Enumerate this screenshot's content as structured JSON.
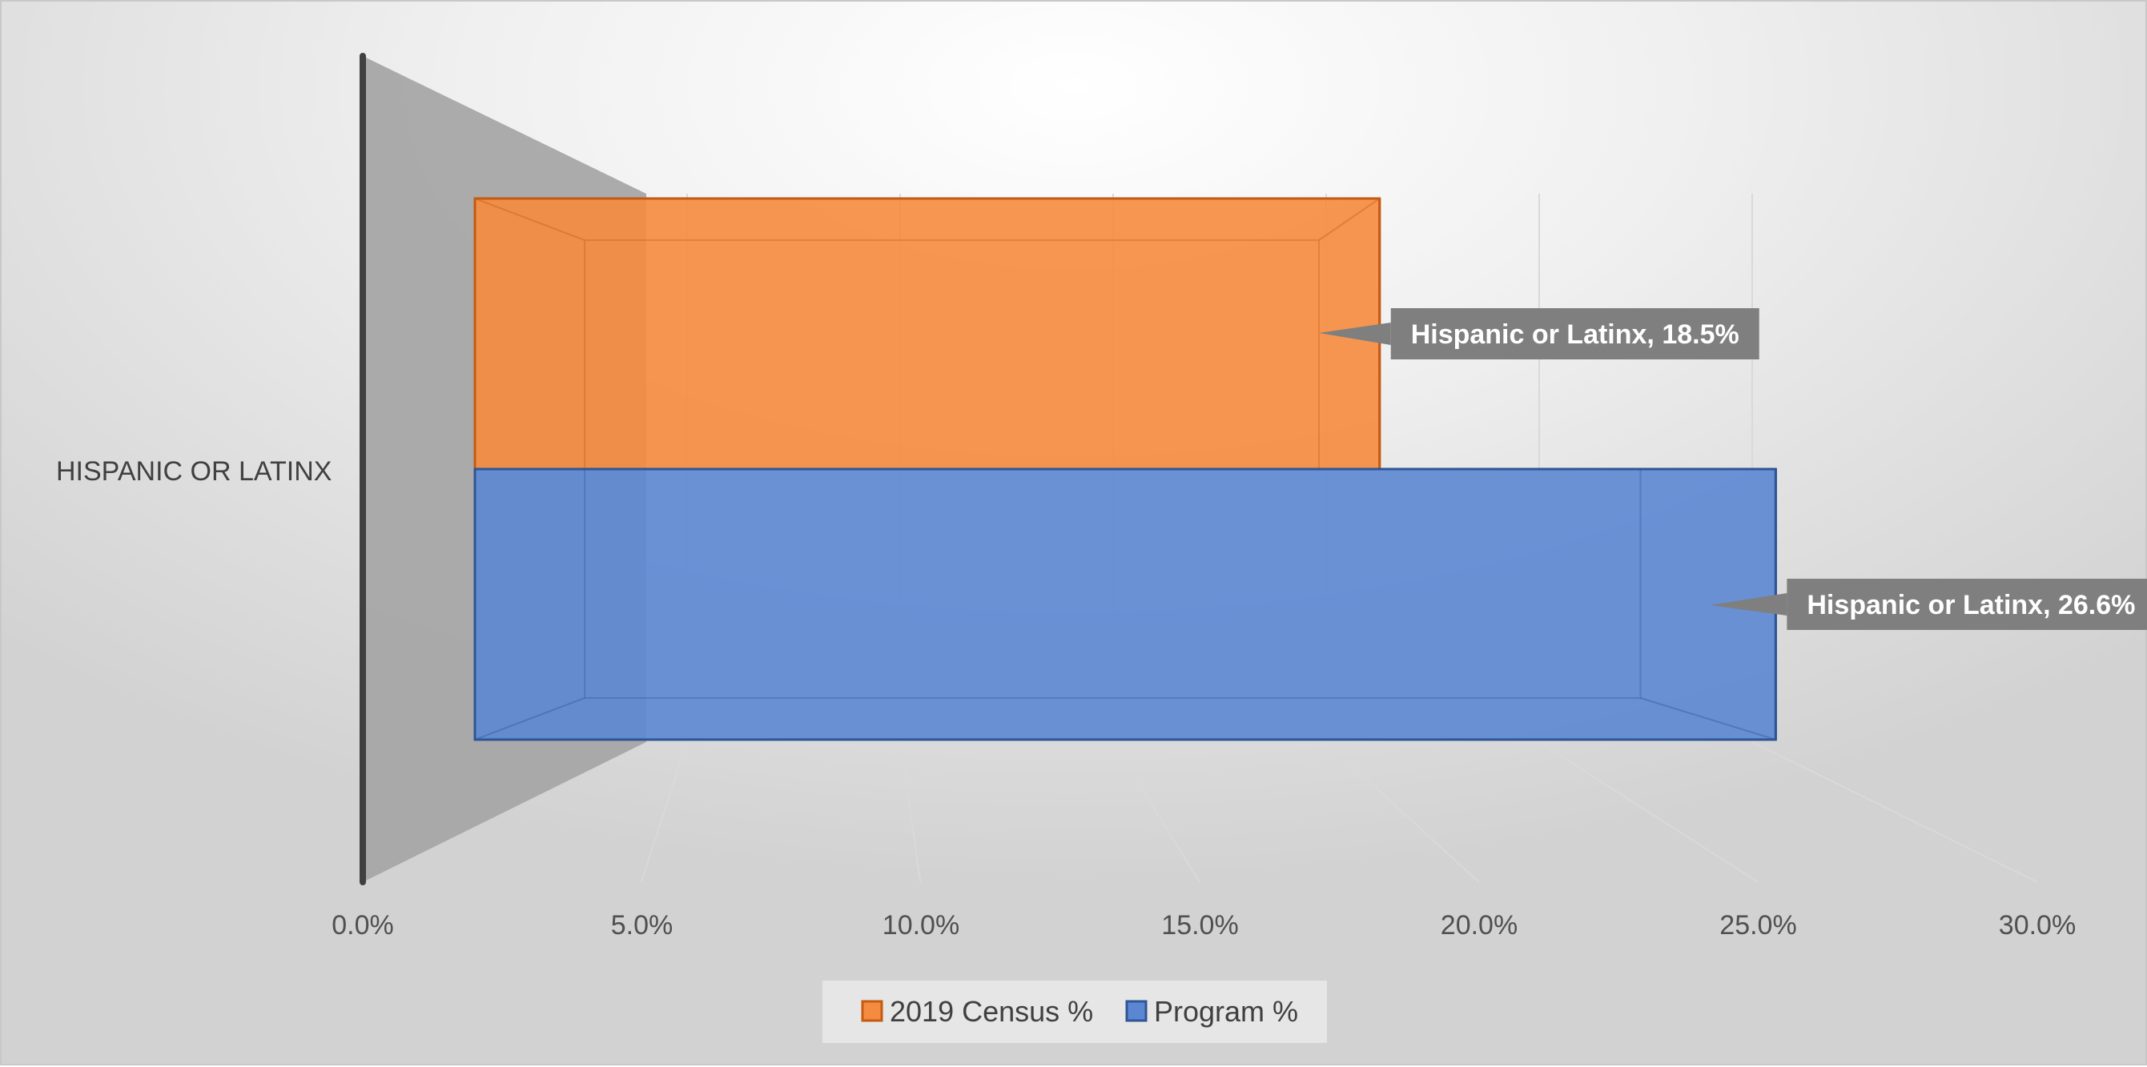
{
  "chart_data": {
    "type": "bar",
    "orientation": "horizontal",
    "style": "3d-clustered-bar",
    "categories": [
      "HISPANIC OR LATINX"
    ],
    "series": [
      {
        "name": "2019 Census %",
        "values": [
          18.5
        ],
        "color": "#F58B3E",
        "edge": "#C55A11",
        "data_labels": [
          "Hispanic or Latinx, 18.5%"
        ]
      },
      {
        "name": "Program %",
        "values": [
          26.6
        ],
        "color": "#5B87D2",
        "edge": "#2F5597",
        "data_labels": [
          "Hispanic or Latinx, 26.6%"
        ]
      }
    ],
    "xlim": [
      0,
      30
    ],
    "x_ticks": [
      "0.0%",
      "5.0%",
      "10.0%",
      "15.0%",
      "20.0%",
      "25.0%",
      "30.0%"
    ],
    "grid": true,
    "legend_position": "bottom",
    "data_label_bg": "#7F7F7F",
    "back_wall_color": "#A6A6A6"
  }
}
